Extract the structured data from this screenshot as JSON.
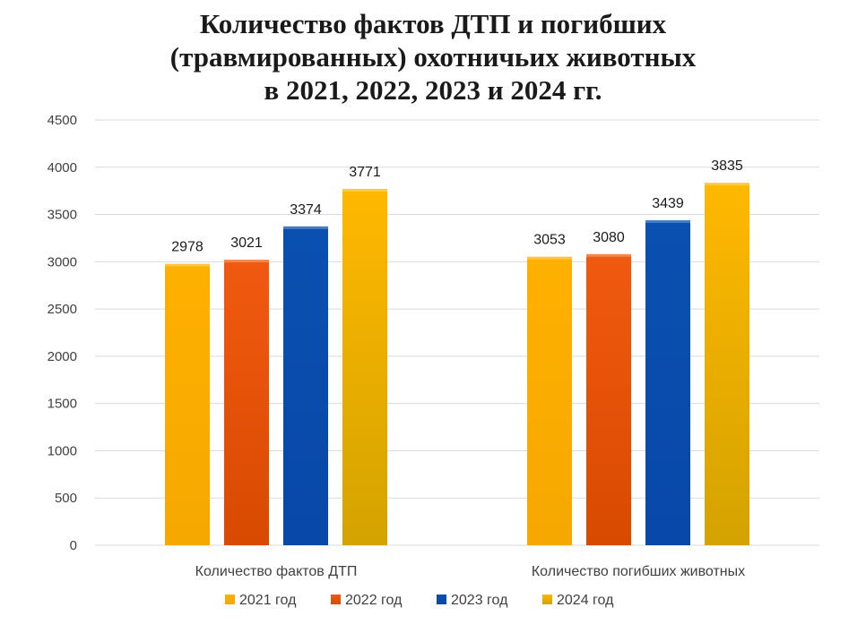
{
  "chart_data": {
    "type": "bar",
    "title": [
      "Количество фактов ДТП и погибших",
      "(травмированных) охотничьих животных",
      "в 2021, 2022, 2023 и 2024 гг."
    ],
    "xlabel": "",
    "ylabel": "",
    "categories": [
      "Количество фактов ДТП",
      "Количество погибших животных"
    ],
    "series": [
      {
        "name": "2021 год",
        "values": [
          2978,
          3053
        ],
        "color": "#FFB000",
        "color_dark": "#F5A800"
      },
      {
        "name": "2022 год",
        "values": [
          3021,
          3080
        ],
        "color": "#F05A10",
        "color_dark": "#D84A00"
      },
      {
        "name": "2023 год",
        "values": [
          3374,
          3439
        ],
        "color": "#0A50B0",
        "color_dark": "#0848A8"
      },
      {
        "name": "2024 год",
        "values": [
          3771,
          3835
        ],
        "color": "#FFB800",
        "color_dark": "#D4A300"
      }
    ],
    "ylim": [
      0,
      4500
    ],
    "yticks": [
      "0",
      "500",
      "1000",
      "1500",
      "2000",
      "2500",
      "3000",
      "3500",
      "4000",
      "4500"
    ],
    "grid": true,
    "legend_position": "bottom"
  }
}
